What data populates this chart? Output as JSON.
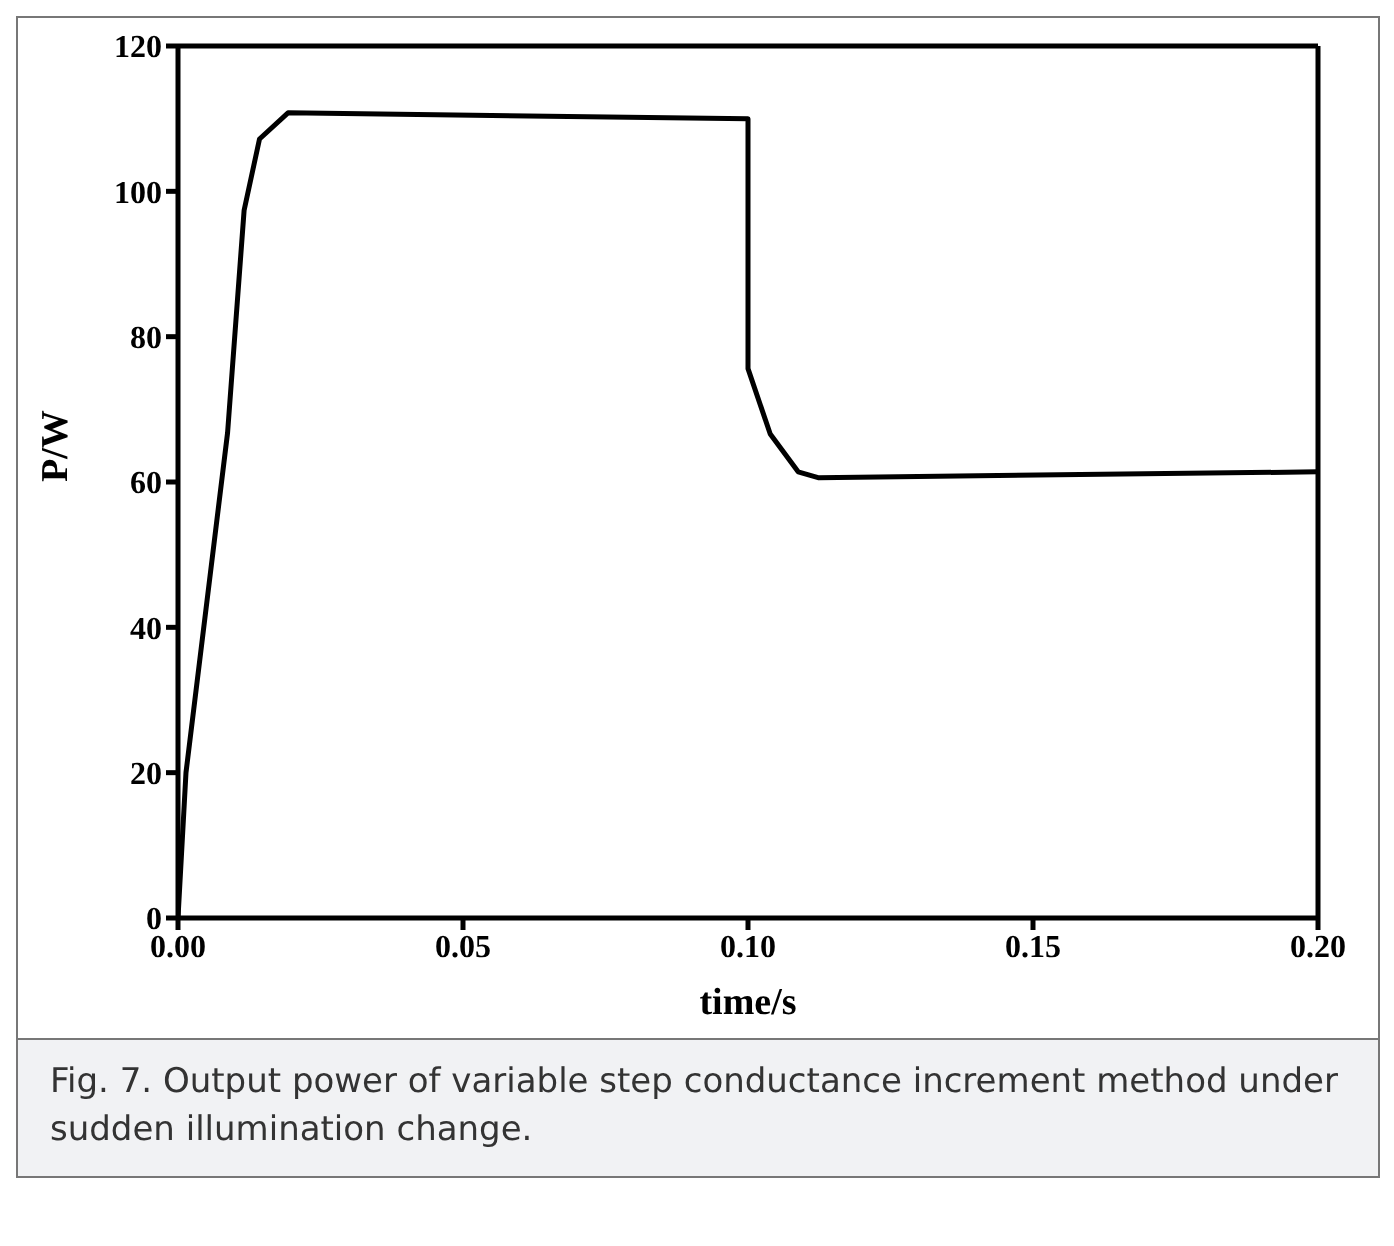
{
  "chart_data": {
    "type": "line",
    "xlabel": "time/s",
    "ylabel": "P/W",
    "x": [
      0,
      0.0014,
      0.0087,
      0.0116,
      0.0143,
      0.0193,
      0.1,
      0.1,
      0.1039,
      0.1088,
      0.1123,
      0.2
    ],
    "series": [
      {
        "color": "#000000",
        "values": [
          0,
          20,
          66.8,
          97.4,
          107.2,
          110.8,
          110,
          75.6,
          66.6,
          61.4,
          60.6,
          61.4
        ]
      }
    ],
    "xlim": [
      0,
      0.2
    ],
    "xticks": [
      {
        "value": 0,
        "label": "0.00"
      },
      0.05,
      {
        "value": 0.1,
        "label": "0.10"
      },
      0.15,
      {
        "value": 0.2,
        "label": "0.20"
      }
    ],
    "ylim": [
      0,
      120
    ],
    "yticks": [
      0,
      20,
      40,
      60,
      80,
      100,
      120
    ],
    "grid": false,
    "legend": false,
    "marker": "none",
    "line_style": "solid",
    "annotations": [
      "Fig. 7. Output power of variable step conductance increment method under sudden illumination change."
    ]
  }
}
